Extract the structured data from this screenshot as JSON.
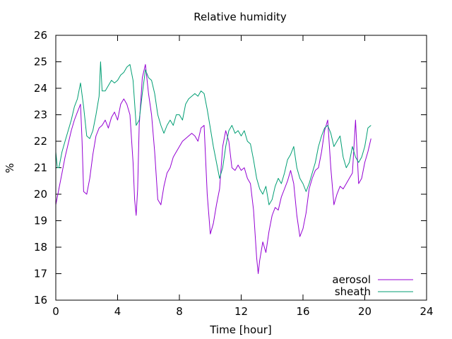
{
  "chart_data": {
    "type": "line",
    "title": "Relative humidity",
    "xlabel": "Time [hour]",
    "ylabel": "%",
    "xlim": [
      0,
      24
    ],
    "ylim": [
      16,
      26
    ],
    "x_ticks": [
      "0",
      "4",
      "8",
      "12",
      "16",
      "20",
      "24"
    ],
    "y_ticks": [
      "16",
      "17",
      "18",
      "19",
      "20",
      "21",
      "22",
      "23",
      "24",
      "25",
      "26"
    ],
    "legend_position": "bottom-right",
    "grid": false,
    "series": [
      {
        "name": "aerosol",
        "color": "#9400d3",
        "points": [
          [
            0.0,
            19.6
          ],
          [
            0.2,
            20.2
          ],
          [
            0.4,
            20.8
          ],
          [
            0.6,
            21.4
          ],
          [
            0.8,
            21.9
          ],
          [
            1.0,
            22.4
          ],
          [
            1.2,
            22.8
          ],
          [
            1.4,
            23.1
          ],
          [
            1.6,
            23.4
          ],
          [
            1.7,
            22.0
          ],
          [
            1.8,
            20.1
          ],
          [
            2.0,
            20.0
          ],
          [
            2.2,
            20.6
          ],
          [
            2.4,
            21.5
          ],
          [
            2.6,
            22.2
          ],
          [
            2.8,
            22.5
          ],
          [
            3.0,
            22.6
          ],
          [
            3.2,
            22.8
          ],
          [
            3.4,
            22.5
          ],
          [
            3.6,
            22.9
          ],
          [
            3.8,
            23.1
          ],
          [
            4.0,
            22.8
          ],
          [
            4.2,
            23.4
          ],
          [
            4.4,
            23.6
          ],
          [
            4.6,
            23.4
          ],
          [
            4.8,
            23.0
          ],
          [
            5.0,
            21.2
          ],
          [
            5.1,
            19.8
          ],
          [
            5.2,
            19.2
          ],
          [
            5.3,
            20.2
          ],
          [
            5.4,
            22.6
          ],
          [
            5.6,
            24.4
          ],
          [
            5.8,
            24.9
          ],
          [
            6.0,
            23.8
          ],
          [
            6.2,
            23.0
          ],
          [
            6.4,
            21.6
          ],
          [
            6.6,
            19.8
          ],
          [
            6.8,
            19.6
          ],
          [
            7.0,
            20.3
          ],
          [
            7.2,
            20.8
          ],
          [
            7.4,
            21.0
          ],
          [
            7.6,
            21.4
          ],
          [
            7.8,
            21.6
          ],
          [
            8.0,
            21.8
          ],
          [
            8.2,
            22.0
          ],
          [
            8.4,
            22.1
          ],
          [
            8.6,
            22.2
          ],
          [
            8.8,
            22.3
          ],
          [
            9.0,
            22.2
          ],
          [
            9.2,
            22.0
          ],
          [
            9.4,
            22.5
          ],
          [
            9.6,
            22.6
          ],
          [
            9.8,
            20.0
          ],
          [
            10.0,
            18.5
          ],
          [
            10.2,
            18.9
          ],
          [
            10.4,
            19.6
          ],
          [
            10.6,
            20.2
          ],
          [
            10.8,
            21.8
          ],
          [
            11.0,
            22.4
          ],
          [
            11.2,
            22.0
          ],
          [
            11.4,
            21.0
          ],
          [
            11.6,
            20.9
          ],
          [
            11.8,
            21.1
          ],
          [
            12.0,
            20.9
          ],
          [
            12.2,
            21.0
          ],
          [
            12.4,
            20.6
          ],
          [
            12.6,
            20.4
          ],
          [
            12.8,
            19.4
          ],
          [
            13.0,
            17.6
          ],
          [
            13.1,
            17.0
          ],
          [
            13.2,
            17.5
          ],
          [
            13.4,
            18.2
          ],
          [
            13.6,
            17.8
          ],
          [
            13.8,
            18.6
          ],
          [
            14.0,
            19.2
          ],
          [
            14.2,
            19.5
          ],
          [
            14.4,
            19.4
          ],
          [
            14.6,
            19.9
          ],
          [
            14.8,
            20.2
          ],
          [
            15.0,
            20.5
          ],
          [
            15.2,
            20.9
          ],
          [
            15.4,
            20.4
          ],
          [
            15.6,
            19.2
          ],
          [
            15.8,
            18.4
          ],
          [
            16.0,
            18.7
          ],
          [
            16.2,
            19.3
          ],
          [
            16.4,
            20.2
          ],
          [
            16.6,
            20.6
          ],
          [
            16.8,
            20.9
          ],
          [
            17.0,
            21.0
          ],
          [
            17.2,
            21.6
          ],
          [
            17.4,
            22.4
          ],
          [
            17.6,
            22.8
          ],
          [
            17.8,
            21.0
          ],
          [
            18.0,
            19.6
          ],
          [
            18.2,
            20.0
          ],
          [
            18.4,
            20.3
          ],
          [
            18.6,
            20.2
          ],
          [
            18.8,
            20.4
          ],
          [
            19.0,
            20.6
          ],
          [
            19.2,
            20.8
          ],
          [
            19.4,
            22.8
          ],
          [
            19.6,
            20.4
          ],
          [
            19.8,
            20.6
          ],
          [
            20.0,
            21.2
          ],
          [
            20.2,
            21.6
          ],
          [
            20.4,
            22.1
          ]
        ]
      },
      {
        "name": "sheath",
        "color": "#009e73",
        "points": [
          [
            0.0,
            21.6
          ],
          [
            0.1,
            21.0
          ],
          [
            0.2,
            21.0
          ],
          [
            0.4,
            21.6
          ],
          [
            0.6,
            22.0
          ],
          [
            0.8,
            22.4
          ],
          [
            1.0,
            22.8
          ],
          [
            1.2,
            23.3
          ],
          [
            1.4,
            23.6
          ],
          [
            1.6,
            24.2
          ],
          [
            1.8,
            23.3
          ],
          [
            2.0,
            22.2
          ],
          [
            2.2,
            22.1
          ],
          [
            2.4,
            22.4
          ],
          [
            2.6,
            23.0
          ],
          [
            2.8,
            23.7
          ],
          [
            2.9,
            25.0
          ],
          [
            3.0,
            23.9
          ],
          [
            3.2,
            23.9
          ],
          [
            3.4,
            24.1
          ],
          [
            3.6,
            24.3
          ],
          [
            3.8,
            24.2
          ],
          [
            4.0,
            24.3
          ],
          [
            4.2,
            24.5
          ],
          [
            4.4,
            24.6
          ],
          [
            4.6,
            24.8
          ],
          [
            4.8,
            24.9
          ],
          [
            5.0,
            24.3
          ],
          [
            5.2,
            22.6
          ],
          [
            5.4,
            22.8
          ],
          [
            5.6,
            23.8
          ],
          [
            5.8,
            24.7
          ],
          [
            6.0,
            24.4
          ],
          [
            6.2,
            24.3
          ],
          [
            6.4,
            23.8
          ],
          [
            6.6,
            23.0
          ],
          [
            6.8,
            22.6
          ],
          [
            7.0,
            22.3
          ],
          [
            7.2,
            22.6
          ],
          [
            7.4,
            22.8
          ],
          [
            7.6,
            22.6
          ],
          [
            7.8,
            23.0
          ],
          [
            8.0,
            23.0
          ],
          [
            8.2,
            22.8
          ],
          [
            8.4,
            23.4
          ],
          [
            8.6,
            23.6
          ],
          [
            8.8,
            23.7
          ],
          [
            9.0,
            23.8
          ],
          [
            9.2,
            23.7
          ],
          [
            9.4,
            23.9
          ],
          [
            9.6,
            23.8
          ],
          [
            9.8,
            23.2
          ],
          [
            10.0,
            22.5
          ],
          [
            10.2,
            21.8
          ],
          [
            10.4,
            21.2
          ],
          [
            10.6,
            20.6
          ],
          [
            10.8,
            21.0
          ],
          [
            11.0,
            21.8
          ],
          [
            11.2,
            22.4
          ],
          [
            11.4,
            22.6
          ],
          [
            11.6,
            22.3
          ],
          [
            11.8,
            22.4
          ],
          [
            12.0,
            22.2
          ],
          [
            12.2,
            22.4
          ],
          [
            12.4,
            22.0
          ],
          [
            12.6,
            21.9
          ],
          [
            12.8,
            21.3
          ],
          [
            13.0,
            20.6
          ],
          [
            13.2,
            20.2
          ],
          [
            13.4,
            20.0
          ],
          [
            13.6,
            20.3
          ],
          [
            13.8,
            19.6
          ],
          [
            14.0,
            19.8
          ],
          [
            14.2,
            20.3
          ],
          [
            14.4,
            20.6
          ],
          [
            14.6,
            20.4
          ],
          [
            14.8,
            20.8
          ],
          [
            15.0,
            21.3
          ],
          [
            15.2,
            21.5
          ],
          [
            15.4,
            21.8
          ],
          [
            15.6,
            21.0
          ],
          [
            15.8,
            20.6
          ],
          [
            16.0,
            20.4
          ],
          [
            16.2,
            20.1
          ],
          [
            16.4,
            20.4
          ],
          [
            16.6,
            20.8
          ],
          [
            16.8,
            21.2
          ],
          [
            17.0,
            21.8
          ],
          [
            17.2,
            22.2
          ],
          [
            17.4,
            22.5
          ],
          [
            17.6,
            22.6
          ],
          [
            17.8,
            22.3
          ],
          [
            18.0,
            21.8
          ],
          [
            18.2,
            22.0
          ],
          [
            18.4,
            22.2
          ],
          [
            18.6,
            21.4
          ],
          [
            18.8,
            21.0
          ],
          [
            19.0,
            21.2
          ],
          [
            19.2,
            21.8
          ],
          [
            19.4,
            21.4
          ],
          [
            19.6,
            21.2
          ],
          [
            19.8,
            21.4
          ],
          [
            20.0,
            21.8
          ],
          [
            20.2,
            22.5
          ],
          [
            20.4,
            22.6
          ]
        ]
      }
    ]
  }
}
